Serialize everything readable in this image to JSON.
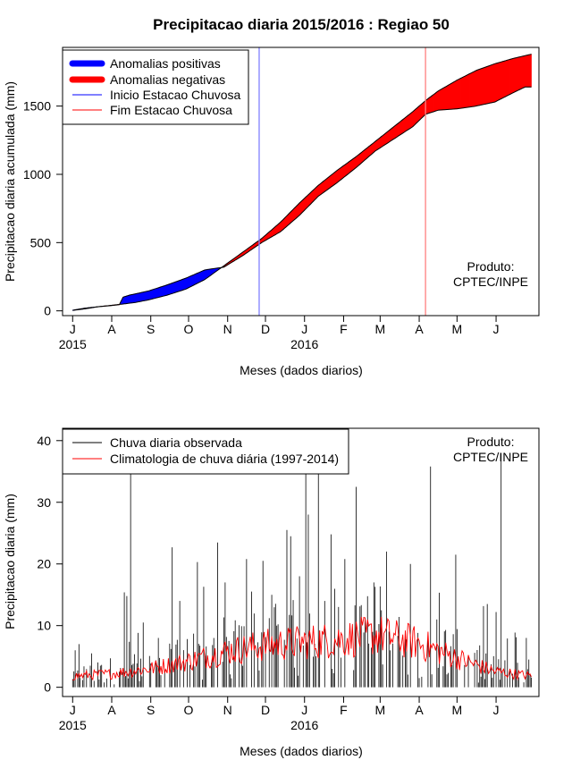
{
  "title": "Precipitacao diaria 2015/2016 : Regiao 50",
  "colors": {
    "positive": "#0000ff",
    "negative": "#ff0000",
    "start_line": "#8080ff",
    "end_line": "#ff8080",
    "observed": "#000000",
    "climatology": "#ff0000"
  },
  "product_label_line1": "Produto:",
  "product_label_line2": "CPTEC/INPE",
  "chart_data": [
    {
      "type": "area",
      "title": "Precipitacao diaria 2015/2016 : Regiao 50",
      "xlabel": "Meses (dados diarios)",
      "ylabel": "Precipitacao diaria acumulada (mm)",
      "month_ticks": [
        "J",
        "A",
        "S",
        "O",
        "N",
        "D",
        "J",
        "F",
        "M",
        "A",
        "M",
        "J"
      ],
      "year_labels": [
        "2015",
        "2016"
      ],
      "y_ticks": [
        0,
        500,
        1000,
        1500
      ],
      "ylim": [
        -35,
        1930
      ],
      "xlim_days": [
        -8,
        370
      ],
      "legend": [
        "Anomalias positivas",
        "Anomalias negativas",
        "Inicio Estacao Chuvosa",
        "Fim Estacao Chuvosa"
      ],
      "rainy_season_start_day": 148,
      "rainy_season_end_day": 280,
      "series": [
        {
          "name": "Observada acumulada",
          "days": [
            0,
            10,
            20,
            30,
            37,
            40,
            45,
            60,
            75,
            90,
            105,
            120,
            135,
            150,
            165,
            180,
            195,
            210,
            225,
            240,
            255,
            270,
            280,
            290,
            305,
            320,
            335,
            350,
            359,
            364
          ],
          "values": [
            5,
            20,
            30,
            38,
            45,
            100,
            115,
            145,
            190,
            240,
            300,
            320,
            405,
            500,
            580,
            700,
            840,
            940,
            1050,
            1170,
            1260,
            1350,
            1440,
            1470,
            1480,
            1500,
            1530,
            1600,
            1640,
            1640
          ]
        },
        {
          "name": "Climatologia acumulada",
          "days": [
            0,
            10,
            20,
            30,
            40,
            50,
            60,
            75,
            90,
            105,
            120,
            135,
            150,
            165,
            180,
            195,
            210,
            225,
            240,
            255,
            270,
            280,
            290,
            305,
            320,
            335,
            350,
            364
          ],
          "values": [
            3,
            15,
            30,
            40,
            50,
            62,
            80,
            115,
            160,
            230,
            330,
            430,
            530,
            650,
            790,
            920,
            1030,
            1130,
            1240,
            1350,
            1460,
            1540,
            1610,
            1690,
            1760,
            1810,
            1850,
            1880
          ]
        }
      ]
    },
    {
      "type": "line",
      "xlabel": "Meses (dados diarios)",
      "ylabel": "Precipitacao diaria (mm)",
      "month_ticks": [
        "J",
        "A",
        "S",
        "O",
        "N",
        "D",
        "J",
        "F",
        "M",
        "A",
        "M",
        "J"
      ],
      "year_labels": [
        "2015",
        "2016"
      ],
      "y_ticks": [
        0,
        10,
        20,
        30,
        40
      ],
      "ylim": [
        -1.5,
        42
      ],
      "xlim_days": [
        -8,
        370
      ],
      "legend": [
        "Chuva diaria observada",
        "Climatologia de chuva diária (1997-2014)"
      ],
      "climatology_monthly_mean": [
        1.8,
        2.2,
        3.0,
        4.2,
        5.8,
        6.8,
        7.3,
        7.8,
        8.5,
        7.2,
        4.8,
        2.6,
        1.8
      ],
      "series": [
        {
          "name": "Chuva diaria observada (picos principais)",
          "days": [
            2,
            5,
            15,
            41,
            43,
            46,
            56,
            68,
            79,
            85,
            99,
            104,
            121,
            138,
            151,
            158,
            170,
            173,
            180,
            185,
            187,
            195,
            200,
            205,
            216,
            225,
            239,
            249,
            268,
            284,
            304,
            329,
            336,
            340,
            360,
            362
          ],
          "values": [
            6,
            7,
            5.5,
            15.4,
            14.8,
            36,
            10.5,
            8,
            22.7,
            14,
            20.3,
            16.3,
            17,
            20.8,
            20.5,
            15,
            25.5,
            24.5,
            18,
            34.8,
            28,
            34.8,
            14,
            24.8,
            20.8,
            32.5,
            17,
            22,
            20,
            35.8,
            21.5,
            13.5,
            12.2,
            38,
            8,
            4.5
          ]
        }
      ]
    }
  ]
}
